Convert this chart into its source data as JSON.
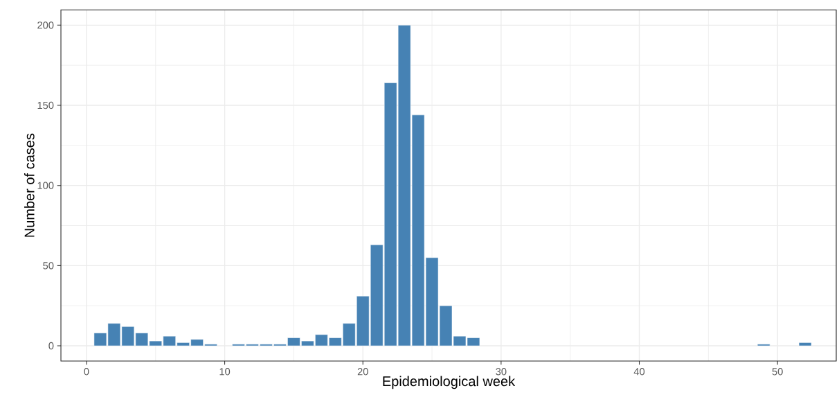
{
  "chart_data": {
    "type": "bar",
    "xlabel": "Epidemiological week",
    "ylabel": "Number of cases",
    "x": [
      1,
      2,
      3,
      4,
      5,
      6,
      7,
      8,
      9,
      11,
      12,
      13,
      14,
      15,
      16,
      17,
      18,
      19,
      20,
      21,
      22,
      23,
      24,
      25,
      26,
      27,
      28,
      49,
      52
    ],
    "values": [
      8,
      14,
      12,
      8,
      3,
      6,
      2,
      4,
      1,
      1,
      1,
      1,
      1,
      5,
      3,
      7,
      5,
      14,
      31,
      63,
      164,
      200,
      144,
      55,
      25,
      6,
      5,
      1,
      2
    ],
    "color": "#4682b4",
    "xlim": [
      -1.85,
      54.25
    ],
    "ylim": [
      -9.5,
      209.5
    ],
    "xticks": [
      0,
      10,
      20,
      30,
      40,
      50
    ],
    "yticks": [
      0,
      50,
      100,
      150,
      200
    ],
    "grid": true
  }
}
